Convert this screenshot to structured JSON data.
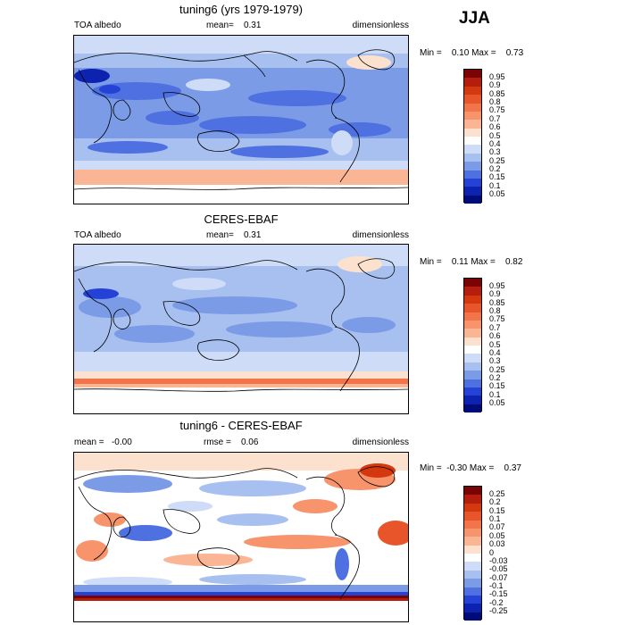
{
  "season": "JJA",
  "panels": [
    {
      "title": "tuning6 (yrs 1979-1979)",
      "left": "TOA albedo",
      "middle": "mean=    0.31",
      "right": "dimensionless",
      "minmax": "Min =    0.10 Max =    0.73",
      "colorbar": {
        "labels": [
          "0.95",
          "0.9",
          "0.85",
          "0.8",
          "0.75",
          "0.7",
          "0.6",
          "0.5",
          "0.4",
          "0.3",
          "0.25",
          "0.2",
          "0.15",
          "0.1",
          "0.05"
        ],
        "colors": [
          "#7a0403",
          "#b51d0c",
          "#d3380f",
          "#e8552a",
          "#f2744a",
          "#f7946c",
          "#fab595",
          "#fde1cf",
          "#ffffff",
          "#cfdcf7",
          "#a7c0ef",
          "#7b9be6",
          "#4e70e0",
          "#2442d6",
          "#0e22b0",
          "#000b7a"
        ]
      }
    },
    {
      "title": "CERES-EBAF",
      "left": "TOA albedo",
      "middle": "mean=    0.31",
      "right": "dimensionless",
      "minmax": "Min =    0.11 Max =    0.82",
      "colorbar": {
        "labels": [
          "0.95",
          "0.9",
          "0.85",
          "0.8",
          "0.75",
          "0.7",
          "0.6",
          "0.5",
          "0.4",
          "0.3",
          "0.25",
          "0.2",
          "0.15",
          "0.1",
          "0.05"
        ],
        "colors": [
          "#7a0403",
          "#b51d0c",
          "#d3380f",
          "#e8552a",
          "#f2744a",
          "#f7946c",
          "#fab595",
          "#fde1cf",
          "#ffffff",
          "#cfdcf7",
          "#a7c0ef",
          "#7b9be6",
          "#4e70e0",
          "#2442d6",
          "#0e22b0",
          "#000b7a"
        ]
      }
    },
    {
      "title": "tuning6 - CERES-EBAF",
      "left": "mean =   -0.00",
      "middle": "rmse =    0.06",
      "right": "dimensionless",
      "minmax": "Min =  -0.30 Max =    0.37",
      "colorbar": {
        "labels": [
          "0.25",
          "0.2",
          "0.15",
          "0.1",
          "0.07",
          "0.05",
          "0.03",
          "0",
          "-0.03",
          "-0.05",
          "-0.07",
          "-0.1",
          "-0.15",
          "-0.2",
          "-0.25"
        ],
        "colors": [
          "#7a0403",
          "#b51d0c",
          "#d3380f",
          "#e8552a",
          "#f2744a",
          "#f7946c",
          "#fab595",
          "#fde1cf",
          "#ffffff",
          "#cfdcf7",
          "#a7c0ef",
          "#7b9be6",
          "#4e70e0",
          "#2442d6",
          "#0e22b0",
          "#000b7a"
        ]
      }
    }
  ]
}
